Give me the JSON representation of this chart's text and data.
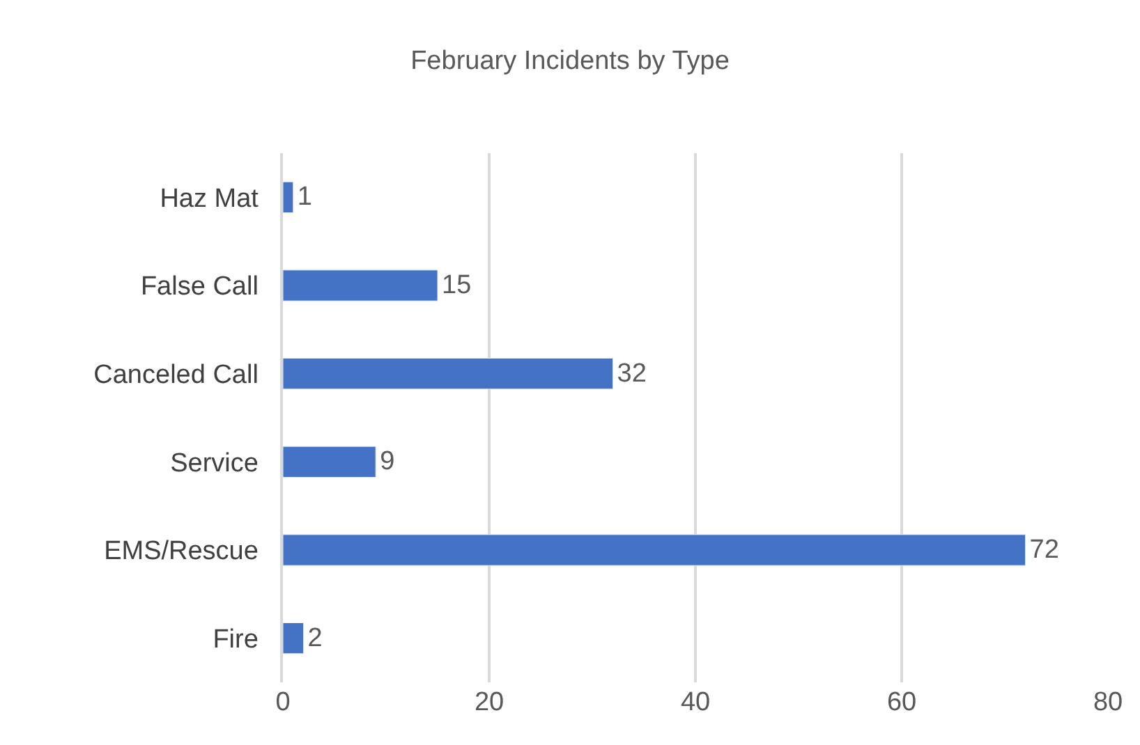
{
  "chart_data": {
    "type": "bar",
    "orientation": "horizontal",
    "title": "February Incidents by Type",
    "categories": [
      "Haz Mat",
      "False Call",
      "Canceled Call",
      "Service",
      "EMS/Rescue",
      "Fire"
    ],
    "values": [
      1,
      15,
      32,
      9,
      72,
      2
    ],
    "color": "#4472c4",
    "xlim": [
      0,
      80
    ],
    "xticks": [
      0,
      20,
      40,
      60,
      80
    ],
    "grid": "x",
    "data_labels": true
  }
}
